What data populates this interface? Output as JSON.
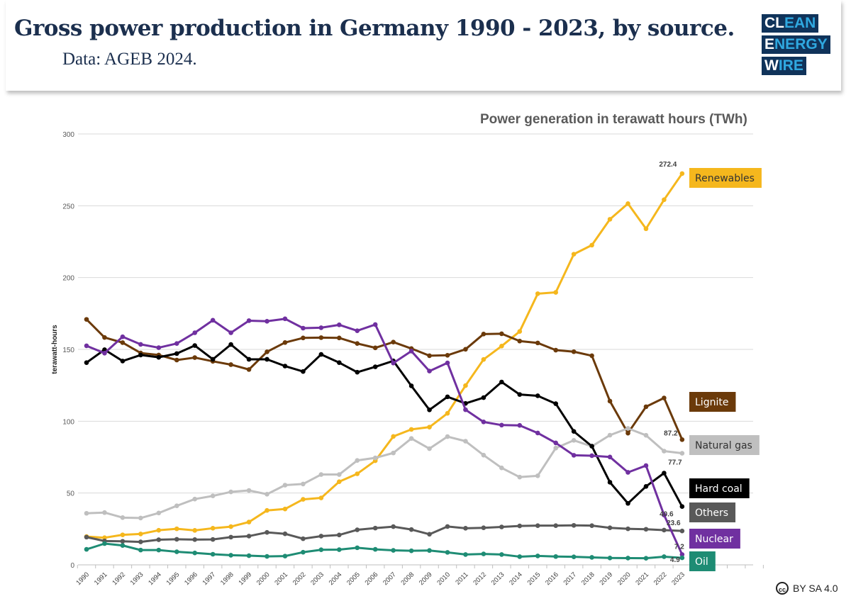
{
  "header": {
    "title": "Gross power production in Germany 1990 - 2023, by source.",
    "subtitle": "Data: AGEB 2024.",
    "logo": [
      "CLEAN",
      "ENERGY",
      "WIRE"
    ]
  },
  "license": "BY SA 4.0",
  "chart_data": {
    "type": "line",
    "title": "Power generation in terawatt hours (TWh)",
    "ylabel": "terawatt-hours",
    "xlabel": "",
    "ylim": [
      0,
      300
    ],
    "yticks": [
      "0",
      "50",
      "100",
      "150",
      "200",
      "250",
      "300"
    ],
    "grid": true,
    "legend_placement": "right (labels at line ends)",
    "x": [
      "1990",
      "1991",
      "1992",
      "1993",
      "1994",
      "1995",
      "1996",
      "1997",
      "1998",
      "1999",
      "2000",
      "2001",
      "2002",
      "2003",
      "2004",
      "2005",
      "2006",
      "2007",
      "2008",
      "2009",
      "2010",
      "2011",
      "2012",
      "2013",
      "2014",
      "2015",
      "2016",
      "2017",
      "2018",
      "2019",
      "2020",
      "2021",
      "2022",
      "2023"
    ],
    "series": [
      {
        "name": "Renewables",
        "color": "#F5B71D",
        "end_label": "272.4",
        "values": [
          19.7,
          18.9,
          20.9,
          21.5,
          24.1,
          25.1,
          24.0,
          25.5,
          26.6,
          29.8,
          37.9,
          38.9,
          45.6,
          46.6,
          57.9,
          63.4,
          72.5,
          89.4,
          94.3,
          95.9,
          105.5,
          124.8,
          143.0,
          152.3,
          162.5,
          188.8,
          189.7,
          216.3,
          222.6,
          240.6,
          251.5,
          234.0,
          254.2,
          272.4
        ]
      },
      {
        "name": "Lignite",
        "color": "#6B3A0A",
        "end_label": "87.2",
        "values": [
          170.9,
          158.3,
          154.7,
          147.5,
          146.1,
          142.6,
          144.3,
          141.7,
          139.4,
          136.0,
          148.3,
          154.8,
          158.0,
          158.2,
          158.0,
          154.1,
          151.1,
          155.1,
          150.6,
          145.6,
          145.9,
          150.1,
          160.7,
          160.9,
          155.8,
          154.5,
          149.5,
          148.4,
          145.6,
          114.0,
          91.7,
          110.1,
          116.2,
          87.2
        ]
      },
      {
        "name": "Natural gas",
        "color": "#BFBFBF",
        "end_label": "77.7",
        "values": [
          35.9,
          36.4,
          32.9,
          32.6,
          36.1,
          41.1,
          45.8,
          48.0,
          50.8,
          51.8,
          49.2,
          55.5,
          56.3,
          62.9,
          62.9,
          72.7,
          74.5,
          77.9,
          88.0,
          80.9,
          89.3,
          86.1,
          76.4,
          67.5,
          61.1,
          62.0,
          81.3,
          86.7,
          82.5,
          90.3,
          95.0,
          90.2,
          79.2,
          77.7
        ]
      },
      {
        "name": "Hard coal",
        "color": "#000000",
        "end_label": "40.6",
        "values": [
          140.8,
          149.8,
          141.9,
          146.1,
          144.5,
          147.1,
          152.7,
          143.1,
          153.4,
          143.1,
          143.1,
          138.4,
          134.6,
          146.5,
          140.8,
          134.1,
          137.9,
          142.0,
          124.6,
          107.9,
          117.0,
          112.4,
          116.4,
          127.3,
          118.6,
          117.7,
          112.2,
          92.9,
          82.6,
          57.5,
          42.8,
          54.6,
          63.9,
          40.6
        ]
      },
      {
        "name": "Others",
        "color": "#595959",
        "end_label": "23.6",
        "values": [
          19.3,
          16.6,
          16.4,
          16.0,
          17.5,
          17.8,
          17.6,
          17.7,
          19.3,
          20.0,
          22.6,
          21.6,
          18.2,
          20.0,
          20.8,
          24.4,
          25.6,
          26.6,
          24.6,
          21.3,
          26.7,
          25.5,
          25.8,
          26.4,
          27.1,
          27.3,
          27.3,
          27.5,
          27.3,
          25.8,
          25.1,
          24.8,
          24.2,
          23.6
        ]
      },
      {
        "name": "Nuclear",
        "color": "#7030A0",
        "end_label": "7.2",
        "values": [
          152.5,
          147.4,
          158.8,
          153.5,
          151.2,
          154.1,
          161.6,
          170.3,
          161.6,
          170.0,
          169.6,
          171.3,
          164.8,
          165.1,
          167.1,
          163.0,
          167.3,
          140.5,
          148.8,
          134.9,
          140.6,
          108.0,
          99.5,
          97.3,
          97.1,
          91.8,
          84.9,
          76.3,
          76.0,
          75.1,
          64.4,
          69.1,
          34.7,
          7.2
        ]
      },
      {
        "name": "Oil",
        "color": "#1E8C74",
        "end_label": "4.9",
        "values": [
          10.8,
          14.8,
          13.5,
          10.3,
          10.3,
          9.1,
          8.3,
          7.4,
          6.7,
          6.4,
          5.9,
          6.1,
          8.8,
          10.5,
          10.6,
          11.9,
          10.8,
          10.1,
          9.8,
          10.0,
          8.7,
          7.2,
          7.6,
          7.2,
          5.7,
          6.2,
          5.8,
          5.6,
          5.2,
          4.8,
          4.7,
          4.6,
          5.7,
          4.9
        ]
      }
    ]
  }
}
